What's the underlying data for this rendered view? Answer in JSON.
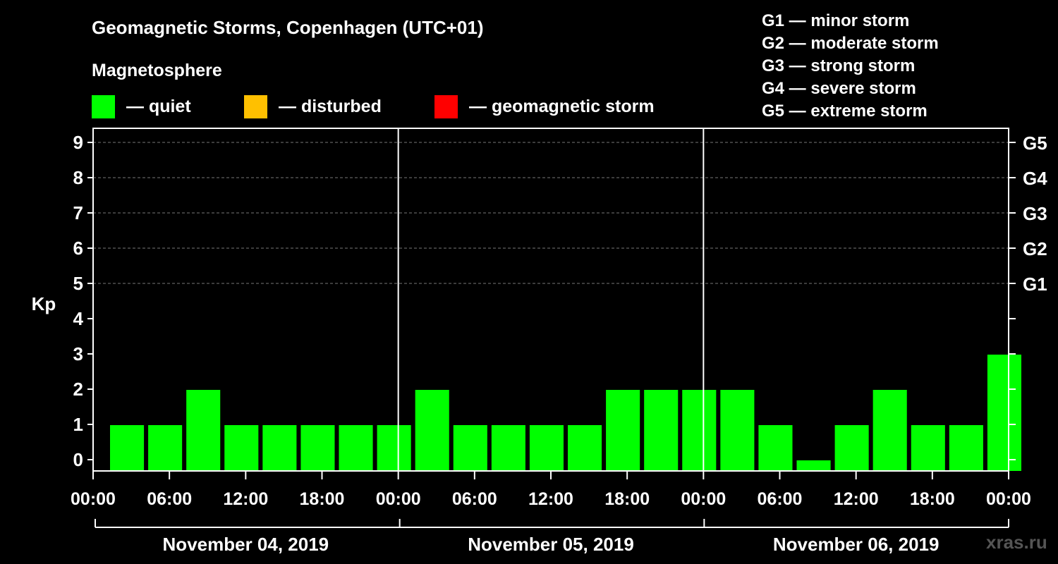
{
  "header": {
    "title": "Geomagnetic Storms, Copenhagen (UTC+01)",
    "subtitle": "Magnetosphere"
  },
  "legend": [
    {
      "label": "— quiet",
      "color": "#00ff00"
    },
    {
      "label": "— disturbed",
      "color": "#ffc000"
    },
    {
      "label": "— geomagnetic storm",
      "color": "#ff0000"
    }
  ],
  "storm_scale": [
    "G1 — minor storm",
    "G2 — moderate storm",
    "G3 — strong storm",
    "G4 — severe storm",
    "G5 — extreme storm"
  ],
  "watermark": "xras.ru",
  "chart_data": {
    "type": "bar",
    "ylabel": "Kp",
    "ylim": [
      0,
      9
    ],
    "yticks": [
      0,
      1,
      2,
      3,
      4,
      5,
      6,
      7,
      8,
      9
    ],
    "right_ticks": [
      {
        "kp": 5,
        "label": "G1"
      },
      {
        "kp": 6,
        "label": "G2"
      },
      {
        "kp": 7,
        "label": "G3"
      },
      {
        "kp": 8,
        "label": "G4"
      },
      {
        "kp": 9,
        "label": "G5"
      }
    ],
    "x_tick_labels": [
      "00:00",
      "06:00",
      "12:00",
      "18:00",
      "00:00",
      "06:00",
      "12:00",
      "18:00",
      "00:00",
      "06:00",
      "12:00",
      "18:00",
      "00:00"
    ],
    "days": [
      "November 04, 2019",
      "November 05, 2019",
      "November 06, 2019"
    ],
    "interval_hours": 3,
    "values": [
      1,
      1,
      2,
      1,
      1,
      1,
      1,
      1,
      2,
      1,
      1,
      1,
      1,
      2,
      2,
      2,
      2,
      1,
      0,
      1,
      2,
      1,
      1,
      3
    ],
    "bar_color": "#00ff00",
    "grid": "dashed at Kp 5-9"
  }
}
